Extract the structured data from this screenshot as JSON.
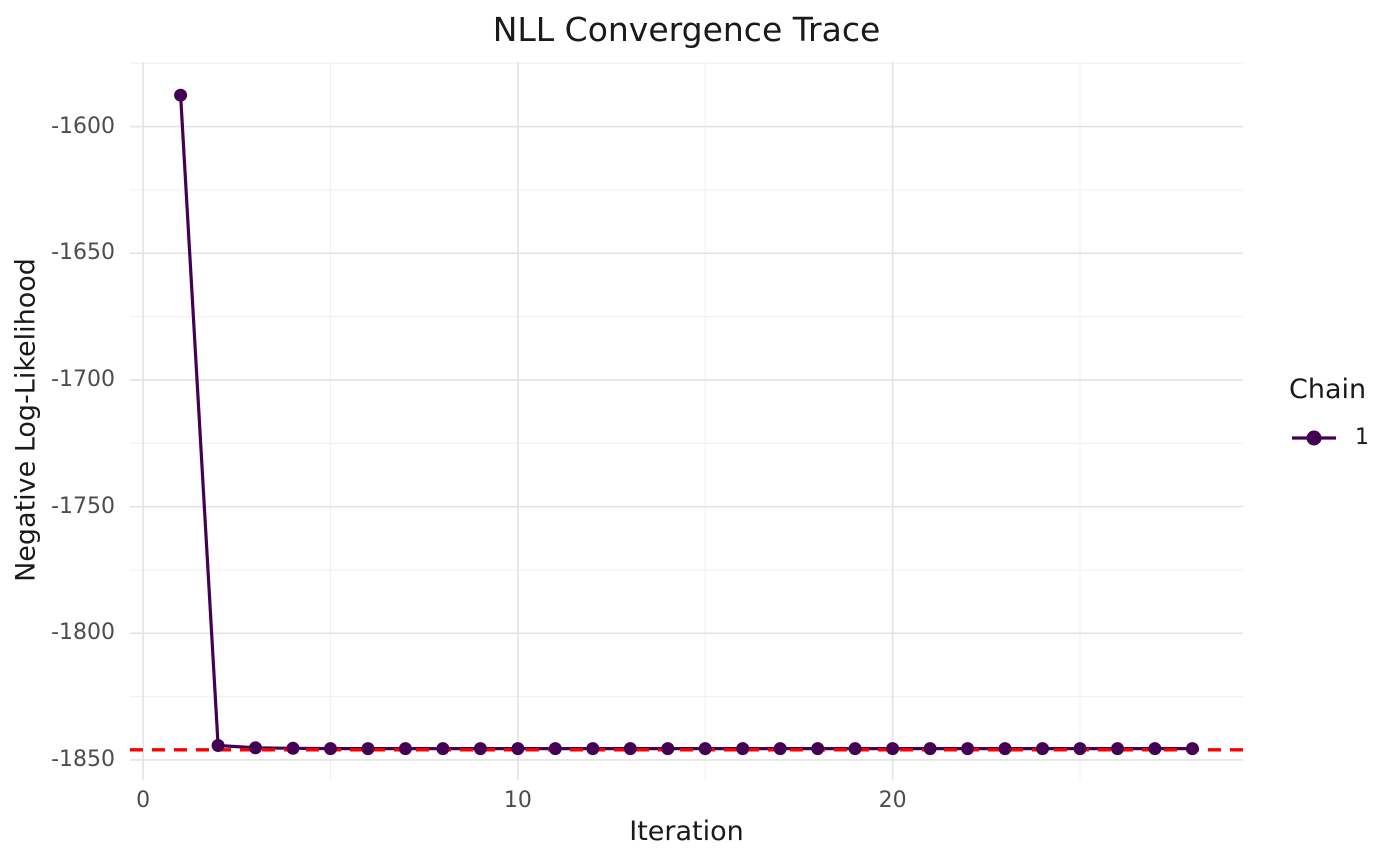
{
  "chart_data": {
    "type": "line",
    "title": "NLL Convergence Trace",
    "xlabel": "Iteration",
    "ylabel": "Negative Log-Likelihood",
    "legend": {
      "title": "Chain",
      "position": "right",
      "entries": [
        {
          "label": "1",
          "color": "#440154"
        }
      ]
    },
    "series": [
      {
        "name": "1",
        "color": "#440154",
        "marker": "circle",
        "x": [
          1,
          2,
          3,
          4,
          5,
          6,
          7,
          8,
          9,
          10,
          11,
          12,
          13,
          14,
          15,
          16,
          17,
          18,
          19,
          20,
          21,
          22,
          23,
          24,
          25,
          26,
          27,
          28
        ],
        "y": [
          -1587.6,
          -1844.3,
          -1845.2,
          -1845.4,
          -1845.5,
          -1845.5,
          -1845.5,
          -1845.5,
          -1845.5,
          -1845.5,
          -1845.5,
          -1845.5,
          -1845.5,
          -1845.5,
          -1845.5,
          -1845.5,
          -1845.5,
          -1845.5,
          -1845.5,
          -1845.5,
          -1845.5,
          -1845.5,
          -1845.5,
          -1845.5,
          -1845.5,
          -1845.5,
          -1845.5,
          -1845.5
        ]
      }
    ],
    "reference_line": {
      "y": -1846,
      "color": "#ff0000",
      "style": "dashed"
    },
    "axes": {
      "x_ticks": [
        0,
        10,
        20
      ],
      "x_minor_ticks": [
        5,
        15,
        25
      ],
      "y_ticks": [
        -1600,
        -1650,
        -1700,
        -1750,
        -1800,
        -1850
      ],
      "y_minor_ticks": [
        -1575,
        -1625,
        -1675,
        -1725,
        -1775,
        -1825
      ],
      "xlim": [
        -0.35,
        29.35
      ],
      "ylim": [
        -1857.9,
        -1574.5
      ]
    },
    "grid": {
      "on": true,
      "major_color": "#e3e3e3",
      "minor_color": "#efefef"
    },
    "style": {
      "background": "#ffffff",
      "title_color": "#1a1a1a",
      "axis_title_color": "#1a1a1a",
      "tick_label_color": "#4d4d4d",
      "line_width": 3.2,
      "point_radius": 6.5
    }
  }
}
